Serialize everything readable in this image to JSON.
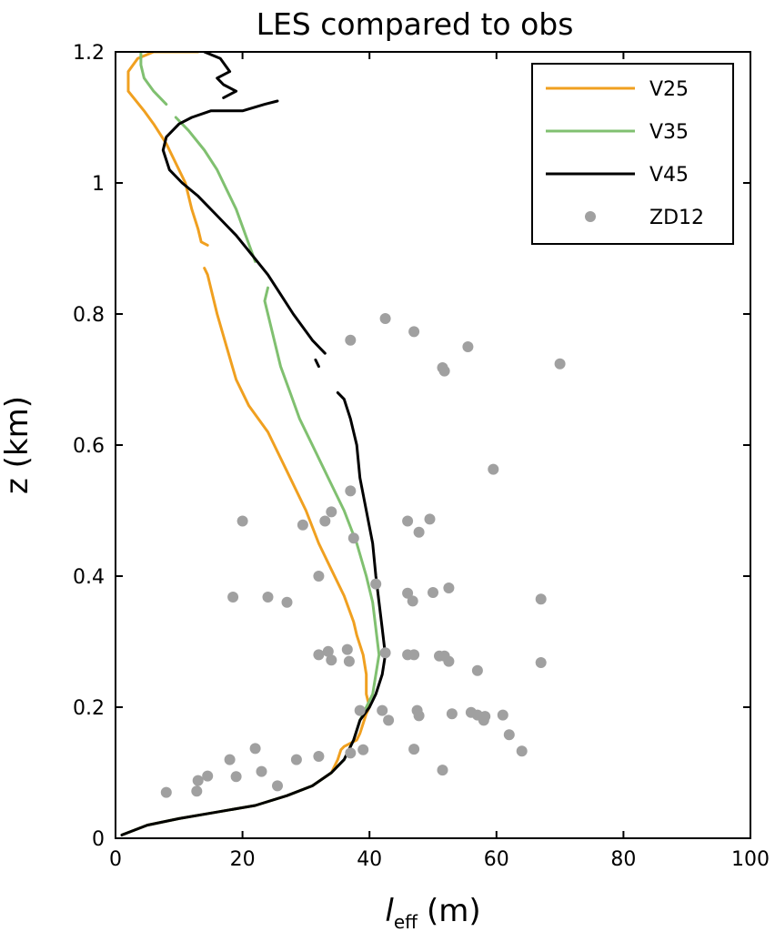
{
  "chart_data": {
    "type": "line",
    "title": "LES compared to obs",
    "xlabel": "l",
    "xlabel_sub": "eff",
    "xlabel_unit": "(m)",
    "ylabel": "z (km)",
    "xlim": [
      0,
      100
    ],
    "ylim": [
      0,
      1.2
    ],
    "xticks": [
      "0",
      "20",
      "40",
      "60",
      "80",
      "100"
    ],
    "yticks": [
      "0",
      "0.2",
      "0.4",
      "0.6",
      "0.8",
      "1",
      "1.2"
    ],
    "grid": false,
    "legend_placement": "top-right",
    "series": [
      {
        "name": "V25",
        "color": "#f0a020",
        "segments": [
          [
            [
              1,
              0.005
            ],
            [
              5,
              0.02
            ],
            [
              10,
              0.03
            ],
            [
              16,
              0.04
            ],
            [
              22,
              0.05
            ],
            [
              27,
              0.065
            ],
            [
              31,
              0.08
            ],
            [
              34,
              0.1
            ],
            [
              35,
              0.12
            ],
            [
              35.5,
              0.135
            ],
            [
              36,
              0.14
            ],
            [
              37,
              0.145
            ],
            [
              38,
              0.15
            ],
            [
              38.5,
              0.16
            ],
            [
              39,
              0.175
            ],
            [
              39.5,
              0.19
            ],
            [
              40,
              0.2
            ],
            [
              39.5,
              0.22
            ],
            [
              39.5,
              0.25
            ],
            [
              39,
              0.28
            ],
            [
              38,
              0.31
            ],
            [
              37.5,
              0.33
            ],
            [
              36,
              0.37
            ],
            [
              34,
              0.41
            ],
            [
              32,
              0.45
            ],
            [
              30,
              0.5
            ],
            [
              27,
              0.56
            ],
            [
              24,
              0.62
            ],
            [
              21,
              0.66
            ],
            [
              19,
              0.7
            ],
            [
              17.5,
              0.75
            ],
            [
              16,
              0.8
            ],
            [
              14.5,
              0.86
            ],
            [
              14,
              0.87
            ]
          ],
          [
            [
              14.5,
              0.905
            ],
            [
              13.5,
              0.91
            ],
            [
              13,
              0.93
            ],
            [
              12,
              0.96
            ],
            [
              11,
              1.0
            ],
            [
              9.5,
              1.03
            ],
            [
              8,
              1.06
            ],
            [
              6,
              1.09
            ],
            [
              4.5,
              1.11
            ],
            [
              2,
              1.14
            ],
            [
              2,
              1.17
            ],
            [
              3.5,
              1.19
            ],
            [
              6,
              1.2
            ],
            [
              10,
              1.2
            ],
            [
              13,
              1.2
            ]
          ]
        ]
      },
      {
        "name": "V35",
        "color": "#80c070",
        "segments": [
          [
            [
              1,
              0.005
            ],
            [
              5,
              0.02
            ],
            [
              10,
              0.03
            ],
            [
              16,
              0.04
            ],
            [
              22,
              0.05
            ],
            [
              27,
              0.065
            ],
            [
              31,
              0.08
            ],
            [
              34,
              0.1
            ],
            [
              36,
              0.12
            ],
            [
              37.5,
              0.15
            ],
            [
              38.5,
              0.18
            ],
            [
              39.5,
              0.2
            ],
            [
              40.5,
              0.22
            ],
            [
              41,
              0.25
            ],
            [
              41.5,
              0.28
            ],
            [
              41,
              0.32
            ],
            [
              40.5,
              0.36
            ],
            [
              39.5,
              0.4
            ],
            [
              38,
              0.45
            ],
            [
              36,
              0.5
            ],
            [
              33.5,
              0.55
            ],
            [
              31,
              0.6
            ],
            [
              29,
              0.64
            ],
            [
              27.5,
              0.68
            ],
            [
              26,
              0.72
            ],
            [
              25,
              0.76
            ],
            [
              24,
              0.8
            ],
            [
              23.5,
              0.82
            ],
            [
              24,
              0.84
            ]
          ],
          [
            [
              22,
              0.88
            ],
            [
              20.5,
              0.92
            ],
            [
              19,
              0.96
            ],
            [
              17.5,
              0.99
            ],
            [
              16,
              1.02
            ],
            [
              14,
              1.05
            ],
            [
              11.5,
              1.08
            ],
            [
              9.5,
              1.1
            ]
          ],
          [
            [
              8,
              1.12
            ],
            [
              6,
              1.14
            ],
            [
              4.5,
              1.16
            ],
            [
              4,
              1.18
            ],
            [
              4,
              1.2
            ]
          ]
        ]
      },
      {
        "name": "V45",
        "color": "#000000",
        "segments": [
          [
            [
              1,
              0.005
            ],
            [
              5,
              0.02
            ],
            [
              10,
              0.03
            ],
            [
              16,
              0.04
            ],
            [
              22,
              0.05
            ],
            [
              27,
              0.065
            ],
            [
              31,
              0.08
            ],
            [
              34,
              0.1
            ],
            [
              36,
              0.12
            ],
            [
              37.5,
              0.15
            ],
            [
              38.5,
              0.18
            ],
            [
              40,
              0.2
            ],
            [
              41,
              0.22
            ],
            [
              42,
              0.25
            ],
            [
              42.5,
              0.28
            ],
            [
              42,
              0.32
            ],
            [
              41.5,
              0.36
            ],
            [
              41,
              0.4
            ],
            [
              40.5,
              0.45
            ],
            [
              39.5,
              0.5
            ],
            [
              38.5,
              0.55
            ],
            [
              38,
              0.6
            ],
            [
              37,
              0.64
            ],
            [
              36,
              0.67
            ],
            [
              35,
              0.68
            ]
          ],
          [
            [
              32,
              0.72
            ],
            [
              31.5,
              0.73
            ]
          ],
          [
            [
              33,
              0.74
            ],
            [
              31,
              0.76
            ],
            [
              28,
              0.8
            ],
            [
              26,
              0.83
            ],
            [
              24,
              0.86
            ],
            [
              21.5,
              0.89
            ],
            [
              19,
              0.92
            ],
            [
              16,
              0.95
            ],
            [
              13,
              0.98
            ],
            [
              10.5,
              1.0
            ],
            [
              8.5,
              1.02
            ],
            [
              7.5,
              1.05
            ],
            [
              8,
              1.07
            ],
            [
              10,
              1.09
            ],
            [
              12,
              1.1
            ],
            [
              15,
              1.11
            ],
            [
              20,
              1.11
            ],
            [
              23.5,
              1.12
            ],
            [
              25.5,
              1.125
            ]
          ],
          [
            [
              14,
              1.2
            ],
            [
              16.5,
              1.19
            ],
            [
              18,
              1.17
            ],
            [
              16,
              1.16
            ],
            [
              17,
              1.15
            ],
            [
              19,
              1.14
            ],
            [
              17,
              1.13
            ]
          ]
        ]
      }
    ],
    "scatter": {
      "name": "ZD12",
      "color": "#a0a0a0",
      "points": [
        [
          8,
          0.07
        ],
        [
          12.8,
          0.072
        ],
        [
          13,
          0.088
        ],
        [
          14.5,
          0.095
        ],
        [
          18,
          0.12
        ],
        [
          19,
          0.094
        ],
        [
          22,
          0.137
        ],
        [
          23,
          0.102
        ],
        [
          25.5,
          0.08
        ],
        [
          28.5,
          0.12
        ],
        [
          32,
          0.125
        ],
        [
          37,
          0.13
        ],
        [
          39,
          0.135
        ],
        [
          38.5,
          0.195
        ],
        [
          42,
          0.195
        ],
        [
          43,
          0.18
        ],
        [
          47,
          0.136
        ],
        [
          47.5,
          0.195
        ],
        [
          47.8,
          0.187
        ],
        [
          51.5,
          0.104
        ],
        [
          53,
          0.19
        ],
        [
          56,
          0.192
        ],
        [
          57,
          0.188
        ],
        [
          58,
          0.18
        ],
        [
          58.2,
          0.186
        ],
        [
          61,
          0.188
        ],
        [
          62,
          0.158
        ],
        [
          64,
          0.133
        ],
        [
          32,
          0.28
        ],
        [
          33.5,
          0.285
        ],
        [
          34,
          0.272
        ],
        [
          36.5,
          0.288
        ],
        [
          36.8,
          0.27
        ],
        [
          42.5,
          0.283
        ],
        [
          46,
          0.28
        ],
        [
          47,
          0.28
        ],
        [
          51,
          0.278
        ],
        [
          51.8,
          0.278
        ],
        [
          52.5,
          0.27
        ],
        [
          57,
          0.256
        ],
        [
          67,
          0.268
        ],
        [
          18.5,
          0.368
        ],
        [
          24,
          0.368
        ],
        [
          27,
          0.36
        ],
        [
          32,
          0.4
        ],
        [
          41,
          0.388
        ],
        [
          46,
          0.374
        ],
        [
          46.8,
          0.362
        ],
        [
          50,
          0.375
        ],
        [
          52.5,
          0.382
        ],
        [
          67,
          0.365
        ],
        [
          20,
          0.484
        ],
        [
          29.5,
          0.478
        ],
        [
          33,
          0.484
        ],
        [
          34,
          0.498
        ],
        [
          37.5,
          0.458
        ],
        [
          37,
          0.53
        ],
        [
          46,
          0.484
        ],
        [
          47.8,
          0.467
        ],
        [
          49.5,
          0.487
        ],
        [
          59.5,
          0.563
        ],
        [
          37,
          0.76
        ],
        [
          42.5,
          0.793
        ],
        [
          47,
          0.773
        ],
        [
          51.5,
          0.718
        ],
        [
          51.8,
          0.713
        ],
        [
          55.5,
          0.75
        ],
        [
          70,
          0.724
        ]
      ]
    }
  }
}
